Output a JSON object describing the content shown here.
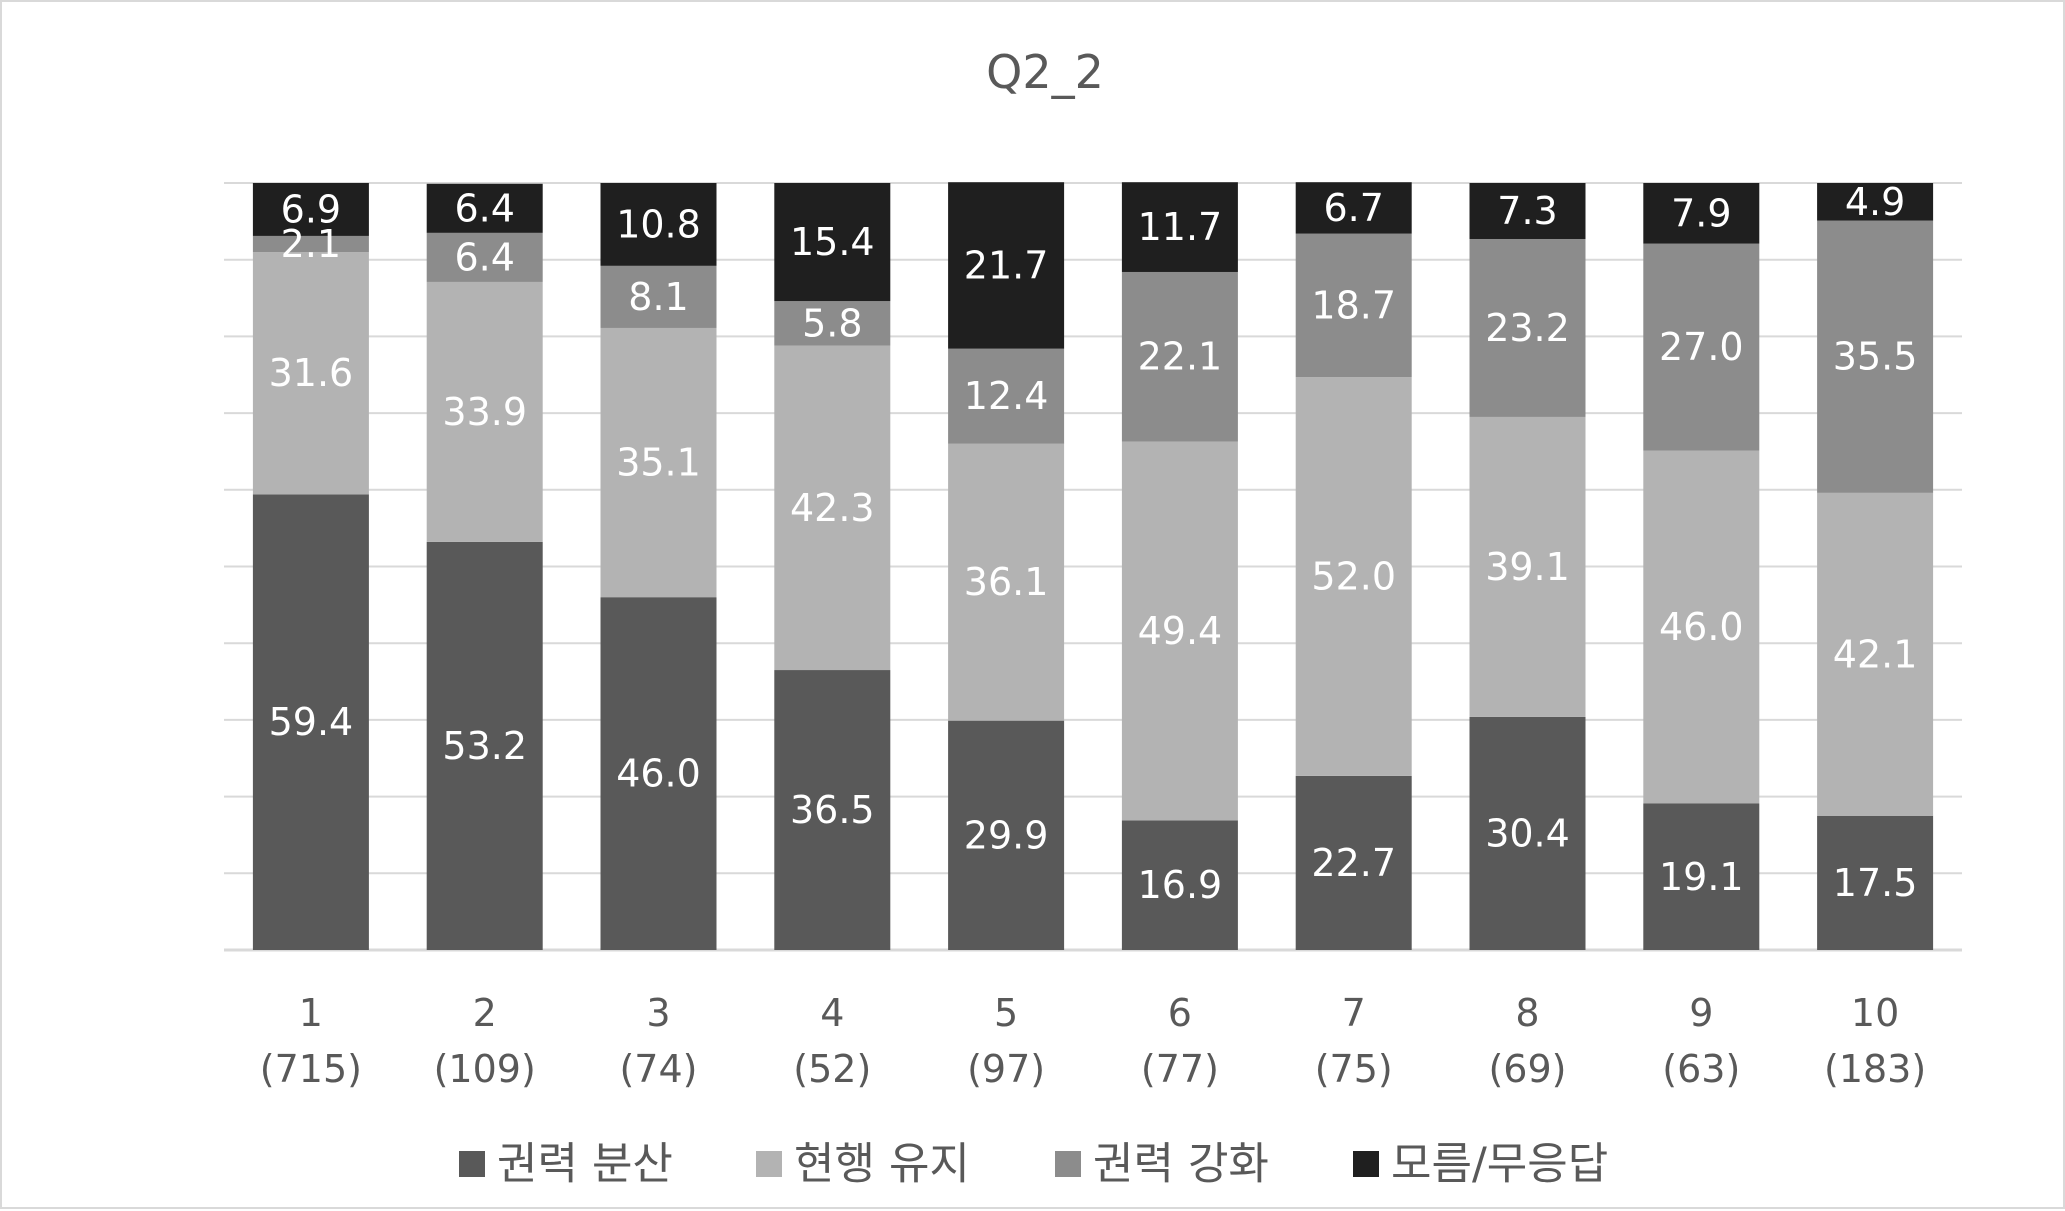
{
  "chart_data": {
    "type": "bar",
    "stacked": true,
    "percent_stacked": true,
    "title": "Q2_2",
    "xlabel": "",
    "ylabel": "",
    "ylim": [
      0,
      100
    ],
    "grid": true,
    "legend_position": "bottom",
    "categories": [
      "1",
      "2",
      "3",
      "4",
      "5",
      "6",
      "7",
      "8",
      "9",
      "10"
    ],
    "category_counts": [
      "(715)",
      "(109)",
      "(74)",
      "(52)",
      "(97)",
      "(77)",
      "(75)",
      "(69)",
      "(63)",
      "(183)"
    ],
    "series": [
      {
        "name": "권력 분산",
        "color": "#595959",
        "values": [
          59.4,
          53.2,
          46.0,
          36.5,
          29.9,
          16.9,
          22.7,
          30.4,
          19.1,
          17.5
        ]
      },
      {
        "name": "현행 유지",
        "color": "#b3b3b3",
        "values": [
          31.6,
          33.9,
          35.1,
          42.3,
          36.1,
          49.4,
          52.0,
          39.1,
          46.0,
          42.1
        ]
      },
      {
        "name": "권력 강화",
        "color": "#8c8c8c",
        "values": [
          2.1,
          6.4,
          8.1,
          5.8,
          12.4,
          22.1,
          18.7,
          23.2,
          27.0,
          35.5
        ]
      },
      {
        "name": "모름/무응답",
        "color": "#1f1f1f",
        "values": [
          6.9,
          6.4,
          10.8,
          15.4,
          21.7,
          11.7,
          6.7,
          7.3,
          7.9,
          4.9
        ]
      }
    ]
  }
}
